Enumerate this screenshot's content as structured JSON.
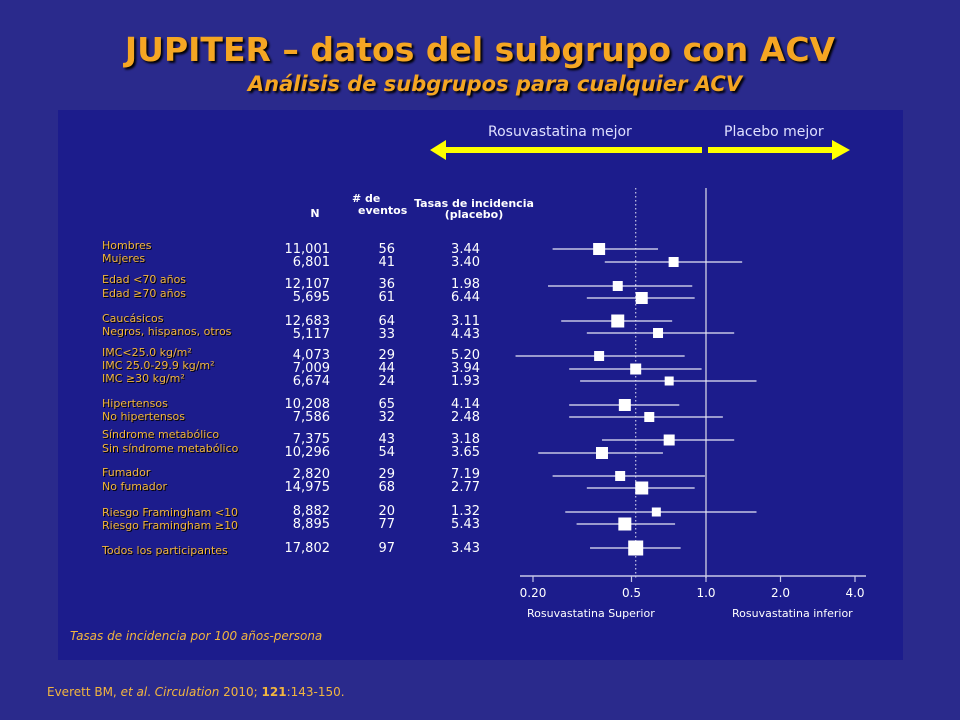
{
  "title": "JUPITER – datos del subgrupo con ACV",
  "subtitle": "Análisis de subgrupos para cualquier ACV",
  "arrows": {
    "left_label": "Rosuvastatina mejor",
    "right_label": "Placebo mejor",
    "color": "#ffff00"
  },
  "columns": {
    "n": "N",
    "events_line1": "# de",
    "events_line2": "eventos",
    "rate_line1": "Tasas de incidencia",
    "rate_line2": "(placebo)"
  },
  "rows": [
    {
      "label": "Hombres",
      "n": "11,001",
      "events": "56",
      "rate": "3.44"
    },
    {
      "label": "Mujeres",
      "n": "6,801",
      "events": "41",
      "rate": "3.40"
    },
    {
      "label": "Edad <70 años",
      "n": "12,107",
      "events": "36",
      "rate": "1.98"
    },
    {
      "label": "Edad ≥70 años",
      "n": "5,695",
      "events": "61",
      "rate": "6.44"
    },
    {
      "label": "Caucásicos",
      "n": "12,683",
      "events": "64",
      "rate": "3.11"
    },
    {
      "label": "Negros, hispanos, otros",
      "n": "5,117",
      "events": "33",
      "rate": "4.43"
    },
    {
      "label": "IMC<25.0 kg/m²",
      "n": "4,073",
      "events": "29",
      "rate": "5.20"
    },
    {
      "label": "IMC 25.0-29.9 kg/m²",
      "n": "7,009",
      "events": "44",
      "rate": "3.94"
    },
    {
      "label": "IMC ≥30 kg/m²",
      "n": "6,674",
      "events": "24",
      "rate": "1.93"
    },
    {
      "label": "Hipertensos",
      "n": "10,208",
      "events": "65",
      "rate": "4.14"
    },
    {
      "label": "No hipertensos",
      "n": "7,586",
      "events": "32",
      "rate": "2.48"
    },
    {
      "label": "Síndrome metabólico",
      "n": "7,375",
      "events": "43",
      "rate": "3.18"
    },
    {
      "label": "Sin síndrome metabólico",
      "n": "10,296",
      "events": "54",
      "rate": "3.65"
    },
    {
      "label": "Fumador",
      "n": "2,820",
      "events": "29",
      "rate": "7.19"
    },
    {
      "label": "No fumador",
      "n": "14,975",
      "events": "68",
      "rate": "2.77"
    },
    {
      "label": "Riesgo Framingham <10",
      "n": "8,882",
      "events": "20",
      "rate": "1.32"
    },
    {
      "label": "Riesgo Framingham ≥10",
      "n": "8,895",
      "events": "77",
      "rate": "5.43"
    },
    {
      "label": "Todos los participantes",
      "n": "17,802",
      "events": "97",
      "rate": "3.43"
    }
  ],
  "axis": {
    "ticks": [
      "0.20",
      "0.5",
      "1.0",
      "2.0",
      "4.0"
    ],
    "caption_left": "Rosuvastatina Superior",
    "caption_right": "Rosuvastatina inferior"
  },
  "footnote": "Tasas de incidencia por 100 años-persona",
  "citation": {
    "authors": "Everett BM, ",
    "etal": "et al",
    "dot": ". ",
    "journal": "Circulation",
    "year": " 2010; ",
    "volume": "121",
    "pages": ":143-150."
  },
  "chart_data": {
    "type": "forest",
    "x_scale": "log",
    "xlim": [
      0.2,
      4.0
    ],
    "reference_line": 1.0,
    "overall_line": 0.52,
    "points": [
      {
        "label": "Hombres",
        "hr": 0.37,
        "ci": [
          0.24,
          0.64
        ]
      },
      {
        "label": "Mujeres",
        "hr": 0.74,
        "ci": [
          0.39,
          1.4
        ]
      },
      {
        "label": "Edad <70 años",
        "hr": 0.44,
        "ci": [
          0.23,
          0.88
        ]
      },
      {
        "label": "Edad ≥70 años",
        "hr": 0.55,
        "ci": [
          0.33,
          0.9
        ]
      },
      {
        "label": "Caucásicos",
        "hr": 0.44,
        "ci": [
          0.26,
          0.73
        ]
      },
      {
        "label": "Negros, hispanos, otros",
        "hr": 0.64,
        "ci": [
          0.33,
          1.3
        ]
      },
      {
        "label": "IMC<25.0 kg/m²",
        "hr": 0.37,
        "ci": [
          0.17,
          0.82
        ]
      },
      {
        "label": "IMC 25.0-29.9 kg/m²",
        "hr": 0.52,
        "ci": [
          0.28,
          0.96
        ]
      },
      {
        "label": "IMC ≥30 kg/m²",
        "hr": 0.71,
        "ci": [
          0.31,
          1.6
        ]
      },
      {
        "label": "Hipertensos",
        "hr": 0.47,
        "ci": [
          0.28,
          0.78
        ]
      },
      {
        "label": "No hipertensos",
        "hr": 0.59,
        "ci": [
          0.28,
          1.17
        ]
      },
      {
        "label": "Síndrome metabólico",
        "hr": 0.71,
        "ci": [
          0.38,
          1.3
        ]
      },
      {
        "label": "Sin síndrome metabólico",
        "hr": 0.38,
        "ci": [
          0.21,
          0.67
        ]
      },
      {
        "label": "Fumador",
        "hr": 0.45,
        "ci": [
          0.24,
          0.99
        ]
      },
      {
        "label": "No fumador",
        "hr": 0.55,
        "ci": [
          0.33,
          0.9
        ]
      },
      {
        "label": "Riesgo Framingham <10",
        "hr": 0.63,
        "ci": [
          0.27,
          1.6
        ]
      },
      {
        "label": "Riesgo Framingham ≥10",
        "hr": 0.47,
        "ci": [
          0.3,
          0.75
        ]
      },
      {
        "label": "Todos los participantes",
        "hr": 0.52,
        "ci": [
          0.34,
          0.79
        ]
      }
    ]
  }
}
